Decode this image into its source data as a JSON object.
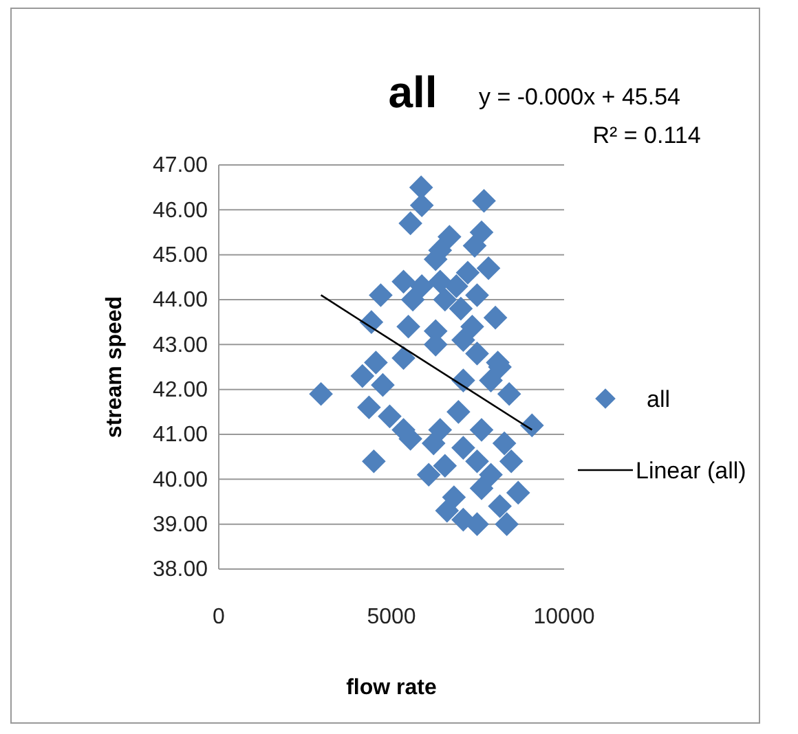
{
  "chart_data": {
    "type": "scatter",
    "title": "all",
    "xlabel": "flow rate",
    "ylabel": "stream speed",
    "annotations": [
      "y = -0.000x + 45.54",
      "R² = 0.114"
    ],
    "xlim": [
      0,
      10000
    ],
    "xticks": [
      0,
      5000,
      10000
    ],
    "ylim": [
      38,
      47
    ],
    "yticks": [
      {
        "value": 38,
        "label": "38.00"
      },
      {
        "value": 39,
        "label": "39.00"
      },
      {
        "value": 40,
        "label": "40.00"
      },
      {
        "value": 41,
        "label": "41.00"
      },
      {
        "value": 42,
        "label": "42.00"
      },
      {
        "value": 43,
        "label": "43.00"
      },
      {
        "value": 44,
        "label": "44.00"
      },
      {
        "value": 45,
        "label": "45.00"
      },
      {
        "value": 46,
        "label": "46.00"
      },
      {
        "value": 47,
        "label": "47.00"
      }
    ],
    "grid": "y",
    "legend": "right",
    "marker": "diamond",
    "series": [
      {
        "name": "all",
        "color": "#4f81bd",
        "x": [
          5860,
          7680,
          5880,
          5550,
          7610,
          6680,
          7410,
          6410,
          6280,
          7810,
          7210,
          5350,
          5880,
          6410,
          6880,
          4690,
          7480,
          5620,
          6550,
          7010,
          8010,
          4420,
          5490,
          6280,
          7340,
          7080,
          6280,
          8080,
          4550,
          5350,
          7480,
          4160,
          4750,
          2960,
          8140,
          7080,
          7880,
          8410,
          4350,
          4950,
          6940,
          9070,
          5350,
          6410,
          7610,
          5550,
          6220,
          8270,
          4490,
          7080,
          7480,
          8470,
          6080,
          6550,
          7880,
          7610,
          8670,
          6810,
          6610,
          8140,
          7080,
          7480,
          8340
        ],
        "values": [
          46.5,
          46.2,
          46.1,
          45.7,
          45.5,
          45.4,
          45.2,
          45.1,
          44.9,
          44.7,
          44.6,
          44.4,
          44.3,
          44.4,
          44.3,
          44.1,
          44.1,
          44.0,
          44.0,
          43.8,
          43.6,
          43.5,
          43.4,
          43.3,
          43.4,
          43.1,
          43.0,
          42.6,
          42.6,
          42.7,
          42.8,
          42.3,
          42.1,
          41.9,
          42.5,
          42.2,
          42.2,
          41.9,
          41.6,
          41.4,
          41.5,
          41.2,
          41.1,
          41.1,
          41.1,
          40.9,
          40.8,
          40.8,
          40.4,
          40.7,
          40.4,
          40.4,
          40.1,
          40.3,
          40.1,
          39.8,
          39.7,
          39.6,
          39.3,
          39.4,
          39.1,
          39.0,
          39.0
        ]
      },
      {
        "name": "Linear (all)",
        "type": "line",
        "color": "#000000",
        "marker": "none",
        "x": [
          2960,
          9070
        ],
        "values": [
          44.1,
          41.1
        ]
      }
    ]
  }
}
